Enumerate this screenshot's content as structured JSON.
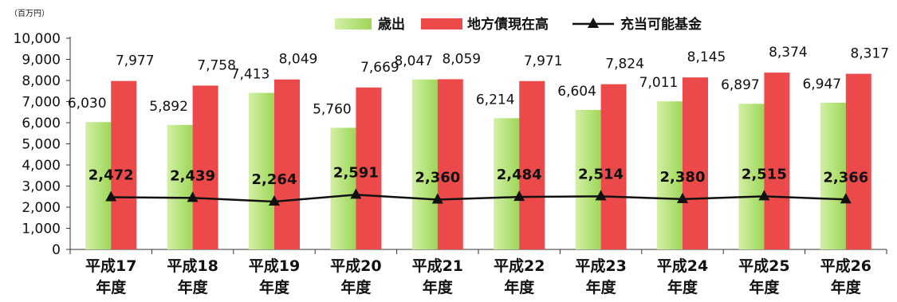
{
  "chart_data": {
    "type": "bar",
    "unit_label": "（百万円）",
    "categories": [
      [
        "平成17",
        "年度"
      ],
      [
        "平成18",
        "年度"
      ],
      [
        "平成19",
        "年度"
      ],
      [
        "平成20",
        "年度"
      ],
      [
        "平成21",
        "年度"
      ],
      [
        "平成22",
        "年度"
      ],
      [
        "平成23",
        "年度"
      ],
      [
        "平成24",
        "年度"
      ],
      [
        "平成25",
        "年度"
      ],
      [
        "平成26",
        "年度"
      ]
    ],
    "ylim": [
      0,
      10000
    ],
    "yticks": [
      0,
      1000,
      2000,
      3000,
      4000,
      5000,
      6000,
      7000,
      8000,
      9000,
      10000
    ],
    "ytick_labels": [
      "0",
      "1,000",
      "2,000",
      "3,000",
      "4,000",
      "5,000",
      "6,000",
      "7,000",
      "8,000",
      "9,000",
      "10,000"
    ],
    "grid": false,
    "legend_position": "top-right",
    "series": [
      {
        "name": "歳出",
        "kind": "bar",
        "color": "#b5e27a",
        "values": [
          6030,
          5892,
          7413,
          5760,
          8047,
          6214,
          6604,
          7011,
          6897,
          6947
        ],
        "labels": [
          "6,030",
          "5,892",
          "7,413",
          "5,760",
          "8,047",
          "6,214",
          "6,604",
          "7,011",
          "6,897",
          "6,947"
        ]
      },
      {
        "name": "地方債現在高",
        "kind": "bar",
        "color": "#ec4a4a",
        "values": [
          7977,
          7758,
          8049,
          7669,
          8059,
          7971,
          7824,
          8145,
          8374,
          8317
        ],
        "labels": [
          "7,977",
          "7,758",
          "8,049",
          "7,669",
          "8,059",
          "7,971",
          "7,824",
          "8,145",
          "8,374",
          "8,317"
        ]
      },
      {
        "name": "充当可能基金",
        "kind": "line",
        "color": "#111111",
        "marker": "triangle",
        "values": [
          2472,
          2439,
          2264,
          2591,
          2360,
          2484,
          2514,
          2380,
          2515,
          2366
        ],
        "labels": [
          "2,472",
          "2,439",
          "2,264",
          "2,591",
          "2,360",
          "2,484",
          "2,514",
          "2,380",
          "2,515",
          "2,366"
        ]
      }
    ]
  }
}
